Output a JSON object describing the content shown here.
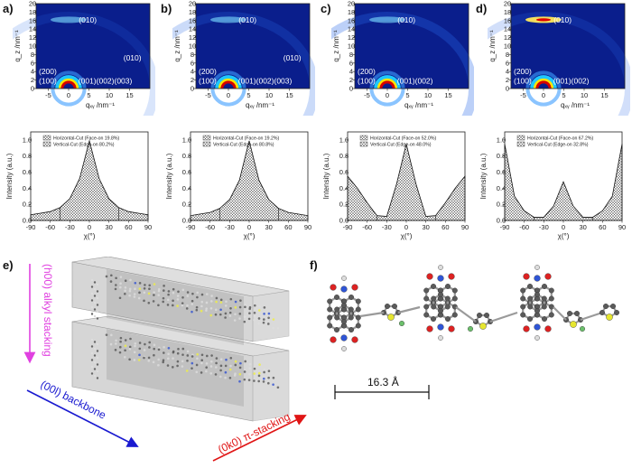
{
  "labels": {
    "a": "a)",
    "b": "b)",
    "c": "c)",
    "d": "d)",
    "e": "e)",
    "f": "f)"
  },
  "giwaxs": {
    "xlabel": "qₓᵧ /nm⁻¹",
    "ylabel": "q_z /nm⁻¹",
    "xticks": [
      "-5",
      "0",
      "5",
      "10",
      "15"
    ],
    "yticks": [
      "0",
      "2",
      "4",
      "6",
      "8",
      "10",
      "12",
      "14",
      "16",
      "18",
      "20"
    ],
    "panels": [
      {
        "id": "a",
        "annotations": [
          "(010)",
          "(200)",
          "(100)",
          "(001)(002)(003)",
          "(010)"
        ]
      },
      {
        "id": "b",
        "annotations": [
          "(010)",
          "(200)",
          "(100)",
          "(001)(002)(003)",
          "(010)"
        ]
      },
      {
        "id": "c",
        "annotations": [
          "(010)",
          "(200)",
          "(100)",
          "(001)(002)"
        ]
      },
      {
        "id": "d",
        "annotations": [
          "(010)",
          "(200)",
          "(100)",
          "(001)(002)"
        ]
      }
    ]
  },
  "pole_figures": {
    "xlabel": "χ(°)",
    "ylabel": "Intensity (a.u.)",
    "xticks": [
      "-90",
      "-60",
      "-30",
      "0",
      "30",
      "60",
      "90"
    ],
    "yticks": [
      "0.0",
      "0.2",
      "0.4",
      "0.6",
      "0.8",
      "1.0"
    ],
    "panels": [
      {
        "id": "a",
        "legend": [
          "Horizontal-Cut (Face-on 19.8%)",
          "Vertical-Cut (Edge-on 80.2%)"
        ]
      },
      {
        "id": "b",
        "legend": [
          "Horizontal-Cut (Face-on 19.2%)",
          "Vertical-Cut (Edge-on 80.8%)"
        ]
      },
      {
        "id": "c",
        "legend": [
          "Horizontal-Cut (Face-on 52.0%)",
          "Vertical-Cut (Edge-on 48.0%)"
        ]
      },
      {
        "id": "d",
        "legend": [
          "Horizontal-Cut (Face-on 67.2%)",
          "Vertical-Cut (Edge-on 32.8%)"
        ]
      }
    ]
  },
  "chart_data": [
    {
      "type": "line",
      "xlabel": "χ(°)",
      "ylabel": "Intensity (a.u.)",
      "xlim": [
        -90,
        90
      ],
      "ylim": [
        0,
        1.1
      ],
      "x": [
        -90,
        -75,
        -60,
        -45,
        -30,
        -15,
        0,
        15,
        30,
        45,
        60,
        75,
        90
      ],
      "series": [
        {
          "values": [
            0.07,
            0.09,
            0.11,
            0.16,
            0.27,
            0.52,
            0.99,
            0.52,
            0.27,
            0.16,
            0.11,
            0.09,
            0.07
          ]
        }
      ]
    },
    {
      "type": "line",
      "xlabel": "χ(°)",
      "ylabel": "Intensity (a.u.)",
      "xlim": [
        -90,
        90
      ],
      "ylim": [
        0,
        1.1
      ],
      "x": [
        -90,
        -75,
        -60,
        -45,
        -30,
        -15,
        0,
        15,
        30,
        45,
        60,
        75,
        90
      ],
      "series": [
        {
          "values": [
            0.06,
            0.08,
            0.1,
            0.15,
            0.26,
            0.5,
            0.99,
            0.5,
            0.26,
            0.15,
            0.1,
            0.08,
            0.06
          ]
        }
      ]
    },
    {
      "type": "line",
      "xlabel": "χ(°)",
      "ylabel": "Intensity (a.u.)",
      "xlim": [
        -90,
        90
      ],
      "ylim": [
        0,
        1.1
      ],
      "x": [
        -90,
        -75,
        -60,
        -45,
        -30,
        -15,
        0,
        15,
        30,
        45,
        60,
        75,
        90
      ],
      "series": [
        {
          "values": [
            0.55,
            0.4,
            0.22,
            0.06,
            0.05,
            0.45,
            0.95,
            0.45,
            0.05,
            0.06,
            0.22,
            0.4,
            0.55
          ]
        }
      ]
    },
    {
      "type": "line",
      "xlabel": "χ(°)",
      "ylabel": "Intensity (a.u.)",
      "xlim": [
        -90,
        90
      ],
      "ylim": [
        0,
        1.1
      ],
      "x": [
        -90,
        -75,
        -60,
        -45,
        -30,
        -15,
        0,
        15,
        30,
        45,
        60,
        75,
        90
      ],
      "series": [
        {
          "values": [
            0.95,
            0.3,
            0.12,
            0.04,
            0.04,
            0.18,
            0.48,
            0.18,
            0.04,
            0.04,
            0.12,
            0.3,
            0.95
          ]
        }
      ]
    }
  ],
  "packing": {
    "alkyl": "(h00) alkyl stacking",
    "backbone": "(00l) backbone",
    "pi": "(0k0) π-stacking",
    "colors": {
      "alkyl": "#e040e0",
      "backbone": "#1a1ad0",
      "pi": "#e01515"
    }
  },
  "molecule": {
    "scale": "16.3 Å"
  },
  "colors": {
    "bg": "#0a1e8c",
    "ring_outer": "#1ec8ff",
    "ring_mid": "#ffe400",
    "ring_inner": "#d60000"
  }
}
